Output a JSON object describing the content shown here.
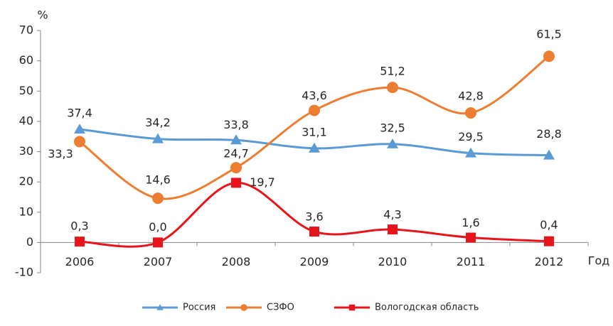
{
  "chart_data": {
    "type": "line",
    "y_label": "%",
    "x_label": "Год",
    "categories": [
      "2006",
      "2007",
      "2008",
      "2009",
      "2010",
      "2011",
      "2012"
    ],
    "series": [
      {
        "name": "Россия",
        "color": "#5b9bd5",
        "marker": "triangle",
        "values": [
          37.4,
          34.2,
          33.8,
          31.1,
          32.5,
          29.5,
          28.8
        ],
        "value_labels": [
          "37,4",
          "34,2",
          "33,8",
          "31,1",
          "32,5",
          "29,5",
          "28,8"
        ]
      },
      {
        "name": "СЗФО",
        "color": "#ed7d31",
        "marker": "circle",
        "values": [
          33.3,
          14.6,
          24.7,
          43.6,
          51.2,
          42.8,
          61.5
        ],
        "value_labels": [
          "33,3",
          "14,6",
          "24,7",
          "43,6",
          "51,2",
          "42,8",
          "61,5"
        ]
      },
      {
        "name": "Вологодская  область",
        "color": "#e8141c",
        "marker": "square",
        "values": [
          0.3,
          0.0,
          19.7,
          3.6,
          4.3,
          1.6,
          0.4
        ],
        "value_labels": [
          "0,3",
          "0,0",
          "19,7",
          "3,6",
          "4,3",
          "1,6",
          "0,4"
        ]
      }
    ],
    "ylim": [
      -10,
      70
    ],
    "yticks": [
      -10,
      0,
      10,
      20,
      30,
      40,
      50,
      60,
      70
    ],
    "smooth": true
  }
}
